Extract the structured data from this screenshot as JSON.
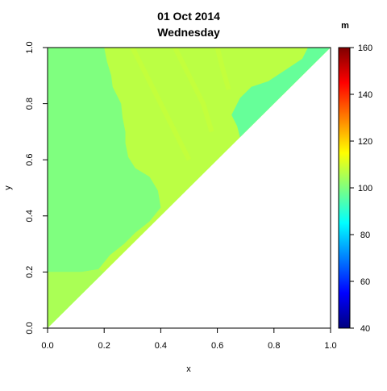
{
  "chart_data": {
    "type": "heatmap",
    "title": "01 Oct 2014",
    "subtitle": "Wednesday",
    "xlabel": "x",
    "ylabel": "y",
    "xlim": [
      0,
      1
    ],
    "ylim": [
      0,
      1
    ],
    "x_ticks": [
      "0.0",
      "0.2",
      "0.4",
      "0.6",
      "0.8",
      "1.0"
    ],
    "y_ticks": [
      "0.0",
      "0.2",
      "0.4",
      "0.6",
      "0.8",
      "1.0"
    ],
    "domain": "upper-left triangle (y >= x)",
    "colorbar": {
      "unit": "m",
      "range": [
        40,
        160
      ],
      "ticks": [
        "40",
        "60",
        "80",
        "100",
        "120",
        "140",
        "160"
      ],
      "palette": [
        "#00007F",
        "#0000FF",
        "#007FFF",
        "#00FFFF",
        "#7FFF7F",
        "#FFFF00",
        "#FF7F00",
        "#FF0000",
        "#7F0000"
      ]
    },
    "regions": [
      {
        "name": "left-band",
        "value": 100
      },
      {
        "name": "center-band",
        "value": 107
      },
      {
        "name": "upper-right-edge",
        "value": 97
      },
      {
        "name": "lower-left-corner",
        "value": 105
      }
    ]
  }
}
